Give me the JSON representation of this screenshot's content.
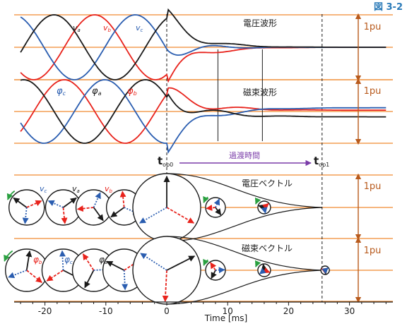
{
  "figure_label": "図 3-2",
  "colors": {
    "phase_a": "#1a1a1a",
    "phase_b": "#e8231c",
    "phase_c": "#2a5db0",
    "guide": "#f08a30",
    "pu_arrow": "#b85a1c",
    "annotation_arrow": "#7a3ca8",
    "rotation_arrow": "#2aa040",
    "figure_label": "#2a7ab8"
  },
  "annotations": {
    "t_op0": {
      "main": "t",
      "sub": "op0"
    },
    "t_op1": {
      "main": "t",
      "sub": "op1"
    },
    "transition": "過渡時間"
  },
  "chart_data": [
    {
      "type": "line",
      "title": "電圧波形",
      "ylabel": "1pu",
      "series": [
        {
          "name": "va",
          "label_main": "v",
          "label_sub": "a"
        },
        {
          "name": "vb",
          "label_main": "v",
          "label_sub": "b"
        },
        {
          "name": "vc",
          "label_main": "v",
          "label_sub": "c"
        }
      ]
    },
    {
      "type": "line",
      "title": "磁束波形",
      "ylabel": "1pu",
      "series": [
        {
          "name": "φc",
          "label_main": "φ",
          "label_sub": "c"
        },
        {
          "name": "φa",
          "label_main": "φ",
          "label_sub": "a"
        },
        {
          "name": "φb",
          "label_main": "φ",
          "label_sub": "b"
        }
      ]
    },
    {
      "type": "scatter",
      "title": "電圧ベクトル",
      "ylabel": "1pu",
      "labels": [
        {
          "main": "v",
          "sub": "c"
        },
        {
          "main": "v",
          "sub": "a"
        },
        {
          "main": "v",
          "sub": "b"
        }
      ]
    },
    {
      "type": "scatter",
      "title": "磁束ベクトル",
      "ylabel": "1pu",
      "labels": [
        {
          "main": "φ",
          "sub": "b"
        },
        {
          "main": "φ",
          "sub": "c"
        },
        {
          "main": "φ",
          "sub": "a"
        }
      ]
    }
  ],
  "x_axis": {
    "label": "Time [ms]",
    "xlim": [
      -25,
      37
    ],
    "ticks": [
      -20,
      -10,
      0,
      10,
      20,
      30
    ]
  },
  "vertical_markers_ms": [
    0,
    8.4,
    15.7,
    25.5
  ]
}
